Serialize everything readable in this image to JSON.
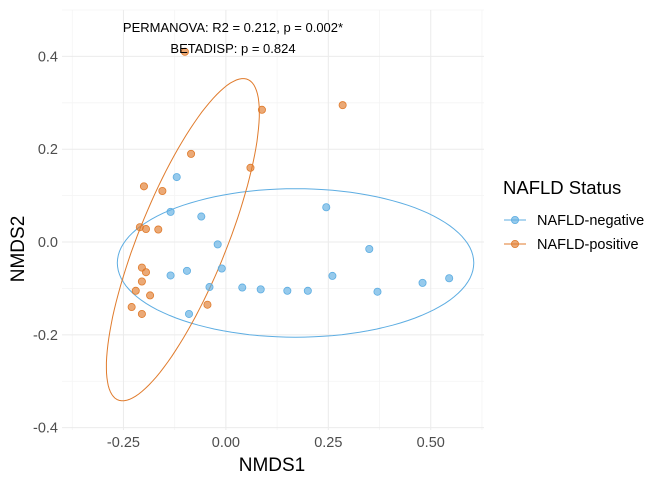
{
  "chart_data": {
    "type": "scatter",
    "title": "",
    "xlabel": "NMDS1",
    "ylabel": "NMDS2",
    "xlim": [
      -0.4,
      0.63
    ],
    "ylim": [
      -0.405,
      0.5
    ],
    "x_ticks": [
      -0.25,
      0.0,
      0.25,
      0.5
    ],
    "x_tick_labels": [
      "-0.25",
      "0.00",
      "0.25",
      "0.50"
    ],
    "y_ticks": [
      -0.4,
      -0.2,
      0.0,
      0.2,
      0.4
    ],
    "y_tick_labels": [
      "-0.4",
      "-0.2",
      "0.0",
      "0.2",
      "0.4"
    ],
    "grid": true,
    "legend": {
      "title": "NAFLD Status",
      "placement": "right"
    },
    "annotations": [
      "PERMANOVA: R2 = 0.212, p = 0.002*",
      "BETADISP: p = 0.824"
    ],
    "series": [
      {
        "name": "NAFLD-negative",
        "color": "#5dade2",
        "points": [
          [
            -0.12,
            0.14
          ],
          [
            -0.135,
            0.065
          ],
          [
            -0.06,
            0.055
          ],
          [
            -0.02,
            -0.005
          ],
          [
            -0.095,
            -0.062
          ],
          [
            -0.135,
            -0.072
          ],
          [
            -0.01,
            -0.057
          ],
          [
            -0.09,
            -0.155
          ],
          [
            -0.04,
            -0.097
          ],
          [
            0.04,
            -0.098
          ],
          [
            0.085,
            -0.102
          ],
          [
            0.15,
            -0.105
          ],
          [
            0.2,
            -0.105
          ],
          [
            0.245,
            0.075
          ],
          [
            0.26,
            -0.073
          ],
          [
            0.35,
            -0.015
          ],
          [
            0.37,
            -0.107
          ],
          [
            0.48,
            -0.088
          ],
          [
            0.545,
            -0.078
          ]
        ],
        "ellipse": {
          "cx": 0.17,
          "cy": -0.045,
          "rx": 0.435,
          "ry": 0.16,
          "rot_deg": 0.0
        }
      },
      {
        "name": "NAFLD-positive",
        "color": "#e07b2c",
        "points": [
          [
            -0.1,
            0.41
          ],
          [
            0.285,
            0.295
          ],
          [
            0.088,
            0.285
          ],
          [
            -0.085,
            0.19
          ],
          [
            0.06,
            0.16
          ],
          [
            -0.2,
            0.12
          ],
          [
            -0.155,
            0.11
          ],
          [
            -0.21,
            0.032
          ],
          [
            -0.195,
            0.028
          ],
          [
            -0.165,
            0.027
          ],
          [
            -0.205,
            -0.055
          ],
          [
            -0.195,
            -0.065
          ],
          [
            -0.205,
            -0.085
          ],
          [
            -0.22,
            -0.105
          ],
          [
            -0.185,
            -0.115
          ],
          [
            -0.045,
            -0.135
          ],
          [
            -0.23,
            -0.14
          ],
          [
            -0.205,
            -0.155
          ]
        ],
        "ellipse": {
          "cx": -0.105,
          "cy": 0.005,
          "rx": 0.105,
          "ry": 0.38,
          "rot_deg": -25.0
        }
      }
    ]
  }
}
